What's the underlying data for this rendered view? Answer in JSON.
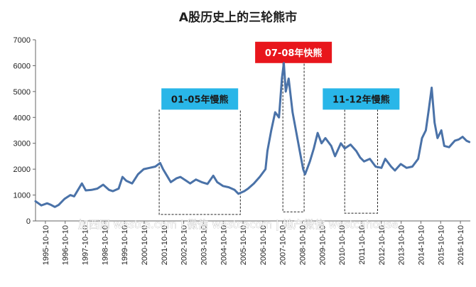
{
  "chart_data": {
    "type": "line",
    "title": "A股历史上的三轮熊市",
    "xlabel": "",
    "ylabel": "",
    "ylim": [
      0,
      7000
    ],
    "yticks": [
      0,
      1000,
      2000,
      3000,
      4000,
      5000,
      6000,
      7000
    ],
    "grid": false,
    "x_tick_labels": [
      "1995-10-10",
      "1996-10-10",
      "1997-10-10",
      "1998-10-10",
      "1999-10-10",
      "2000-10-10",
      "2001-10-10",
      "2002-10-10",
      "2003-10-10",
      "2004-10-10",
      "2005-10-10",
      "2006-10-10",
      "2007-10-10",
      "2008-10-10",
      "2009-10-10",
      "2010-10-10",
      "2011-10-10",
      "2012-10-10",
      "2013-10-10",
      "2014-10-10",
      "2015-10-10",
      "2016-10-10"
    ],
    "x_range": [
      1995.0,
      2017.5
    ],
    "series": [
      {
        "color": "#4a72a8",
        "points": [
          [
            1995.0,
            760
          ],
          [
            1995.3,
            600
          ],
          [
            1995.6,
            680
          ],
          [
            1995.8,
            620
          ],
          [
            1996.0,
            540
          ],
          [
            1996.2,
            620
          ],
          [
            1996.5,
            850
          ],
          [
            1996.8,
            1000
          ],
          [
            1997.0,
            950
          ],
          [
            1997.2,
            1200
          ],
          [
            1997.4,
            1450
          ],
          [
            1997.6,
            1180
          ],
          [
            1997.9,
            1200
          ],
          [
            1998.2,
            1250
          ],
          [
            1998.5,
            1400
          ],
          [
            1998.8,
            1200
          ],
          [
            1999.0,
            1150
          ],
          [
            1999.3,
            1250
          ],
          [
            1999.5,
            1700
          ],
          [
            1999.7,
            1550
          ],
          [
            2000.0,
            1450
          ],
          [
            2000.3,
            1800
          ],
          [
            2000.6,
            2000
          ],
          [
            2000.9,
            2050
          ],
          [
            2001.2,
            2100
          ],
          [
            2001.45,
            2240
          ],
          [
            2001.6,
            2000
          ],
          [
            2001.8,
            1750
          ],
          [
            2002.0,
            1500
          ],
          [
            2002.3,
            1650
          ],
          [
            2002.5,
            1700
          ],
          [
            2002.8,
            1550
          ],
          [
            2003.0,
            1450
          ],
          [
            2003.3,
            1600
          ],
          [
            2003.6,
            1500
          ],
          [
            2003.9,
            1430
          ],
          [
            2004.2,
            1750
          ],
          [
            2004.4,
            1500
          ],
          [
            2004.7,
            1350
          ],
          [
            2005.0,
            1300
          ],
          [
            2005.3,
            1200
          ],
          [
            2005.5,
            1050
          ],
          [
            2005.8,
            1150
          ],
          [
            2006.0,
            1250
          ],
          [
            2006.3,
            1450
          ],
          [
            2006.6,
            1700
          ],
          [
            2006.9,
            2000
          ],
          [
            2007.0,
            2700
          ],
          [
            2007.2,
            3500
          ],
          [
            2007.4,
            4200
          ],
          [
            2007.6,
            4000
          ],
          [
            2007.75,
            5500
          ],
          [
            2007.85,
            6100
          ],
          [
            2007.95,
            5000
          ],
          [
            2008.1,
            5500
          ],
          [
            2008.3,
            4200
          ],
          [
            2008.5,
            3400
          ],
          [
            2008.7,
            2600
          ],
          [
            2008.85,
            2000
          ],
          [
            2008.95,
            1800
          ],
          [
            2009.2,
            2300
          ],
          [
            2009.4,
            2800
          ],
          [
            2009.6,
            3400
          ],
          [
            2009.8,
            3000
          ],
          [
            2010.0,
            3200
          ],
          [
            2010.3,
            2900
          ],
          [
            2010.5,
            2500
          ],
          [
            2010.8,
            3000
          ],
          [
            2011.0,
            2800
          ],
          [
            2011.3,
            2950
          ],
          [
            2011.6,
            2700
          ],
          [
            2011.8,
            2450
          ],
          [
            2012.0,
            2300
          ],
          [
            2012.3,
            2400
          ],
          [
            2012.6,
            2100
          ],
          [
            2012.9,
            2050
          ],
          [
            2013.1,
            2400
          ],
          [
            2013.4,
            2100
          ],
          [
            2013.6,
            1950
          ],
          [
            2013.9,
            2200
          ],
          [
            2014.2,
            2050
          ],
          [
            2014.5,
            2100
          ],
          [
            2014.8,
            2400
          ],
          [
            2015.0,
            3200
          ],
          [
            2015.2,
            3500
          ],
          [
            2015.35,
            4300
          ],
          [
            2015.5,
            5150
          ],
          [
            2015.65,
            3800
          ],
          [
            2015.8,
            3200
          ],
          [
            2016.0,
            3500
          ],
          [
            2016.15,
            2900
          ],
          [
            2016.4,
            2850
          ],
          [
            2016.7,
            3100
          ],
          [
            2016.9,
            3150
          ],
          [
            2017.1,
            3250
          ],
          [
            2017.3,
            3100
          ],
          [
            2017.45,
            3050
          ]
        ]
      }
    ],
    "annotations": [
      {
        "text": "01-05年慢熊",
        "box_color": "#29b6e8",
        "text_color": "#1a1a1a",
        "range": [
          2001.4,
          2005.6
        ],
        "y_top": 4300,
        "y_bottom": 250
      },
      {
        "text": "07-08年快熊",
        "box_color": "#e8161c",
        "text_color": "#ffffff",
        "range": [
          2007.8,
          2008.9
        ],
        "y_top": 6100,
        "y_bottom": 350
      },
      {
        "text": "11-12年慢熊",
        "box_color": "#29b6e8",
        "text_color": "#1a1a1a",
        "range": [
          2011.0,
          2012.7
        ],
        "y_top": 4300,
        "y_bottom": 300
      }
    ]
  },
  "watermark": "加西网 westca.com | 微信 westcacom | 地产微信 westcahouse"
}
